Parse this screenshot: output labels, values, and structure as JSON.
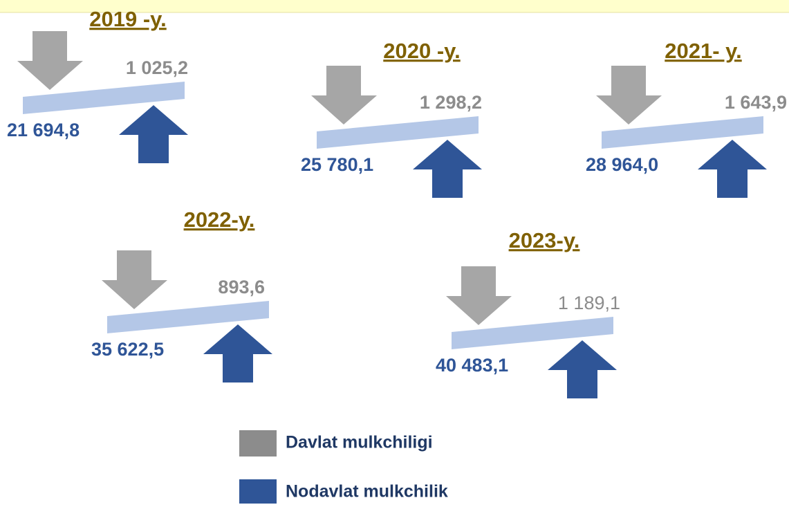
{
  "groups": [
    {
      "year": "2019 -y.",
      "state": "1 025,2",
      "nonstate": "21 694,8"
    },
    {
      "year": "2020 -y.",
      "state": "1 298,2",
      "nonstate": "25 780,1"
    },
    {
      "year": "2021- y.",
      "state": "1 643,9",
      "nonstate": "28 964,0"
    },
    {
      "year": "2022-y.",
      "state": "893,6",
      "nonstate": "35 622,5"
    },
    {
      "year": "2023-y.",
      "state": "1 189,1",
      "nonstate": "40 483,1"
    }
  ],
  "legend": [
    {
      "label": "Davlat  mulkchiligi",
      "color": "#8c8c8c"
    },
    {
      "label": "Nodavlat  mulkchilik",
      "color": "#2f5597"
    }
  ]
}
